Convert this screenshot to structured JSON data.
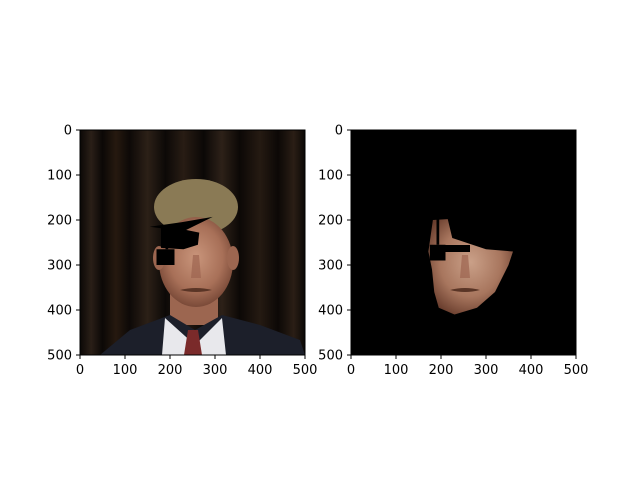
{
  "figure": {
    "background": "#ffffff",
    "axis_color": "#000000"
  },
  "chart_data": [
    {
      "type": "image",
      "title": "",
      "xlabel": "",
      "ylabel": "",
      "xlim": [
        0,
        500
      ],
      "ylim": [
        500,
        0
      ],
      "grid": false,
      "xticks": [
        0,
        100,
        200,
        300,
        400,
        500
      ],
      "yticks": [
        0,
        100,
        200,
        300,
        400,
        500
      ],
      "content": "photo of a man in suit and tie with graduation cap drawn over eyes",
      "overlay": {
        "shape": "graduation-cap",
        "board": [
          [
            155,
            215
          ],
          [
            225,
            205
          ],
          [
            295,
            193
          ],
          [
            230,
            225
          ]
        ],
        "band": [
          [
            180,
            218
          ],
          [
            235,
            222
          ],
          [
            265,
            228
          ],
          [
            262,
            255
          ],
          [
            230,
            265
          ],
          [
            180,
            262
          ]
        ],
        "tassel_x": [
          190,
          196
        ],
        "tassel_y": [
          215,
          265
        ],
        "block": [
          [
            170,
            265
          ],
          [
            210,
            300
          ]
        ]
      }
    },
    {
      "type": "image",
      "title": "",
      "xlabel": "",
      "ylabel": "",
      "xlim": [
        0,
        500
      ],
      "ylim": [
        500,
        0
      ],
      "grid": false,
      "xticks": [
        0,
        100,
        200,
        300,
        400,
        500
      ],
      "yticks": [
        0,
        100,
        200,
        300,
        400,
        500
      ],
      "content": "segmented face region of the same man on black background",
      "mask_outline": [
        [
          182,
          200
        ],
        [
          215,
          198
        ],
        [
          225,
          240
        ],
        [
          300,
          265
        ],
        [
          360,
          270
        ],
        [
          350,
          300
        ],
        [
          320,
          360
        ],
        [
          280,
          395
        ],
        [
          230,
          410
        ],
        [
          195,
          395
        ],
        [
          185,
          360
        ],
        [
          180,
          310
        ],
        [
          172,
          270
        ]
      ],
      "overlay": {
        "tassel_x": [
          190,
          196
        ],
        "tassel_y": [
          195,
          255
        ],
        "block": [
          [
            175,
            255
          ],
          [
            210,
            290
          ]
        ]
      }
    }
  ]
}
